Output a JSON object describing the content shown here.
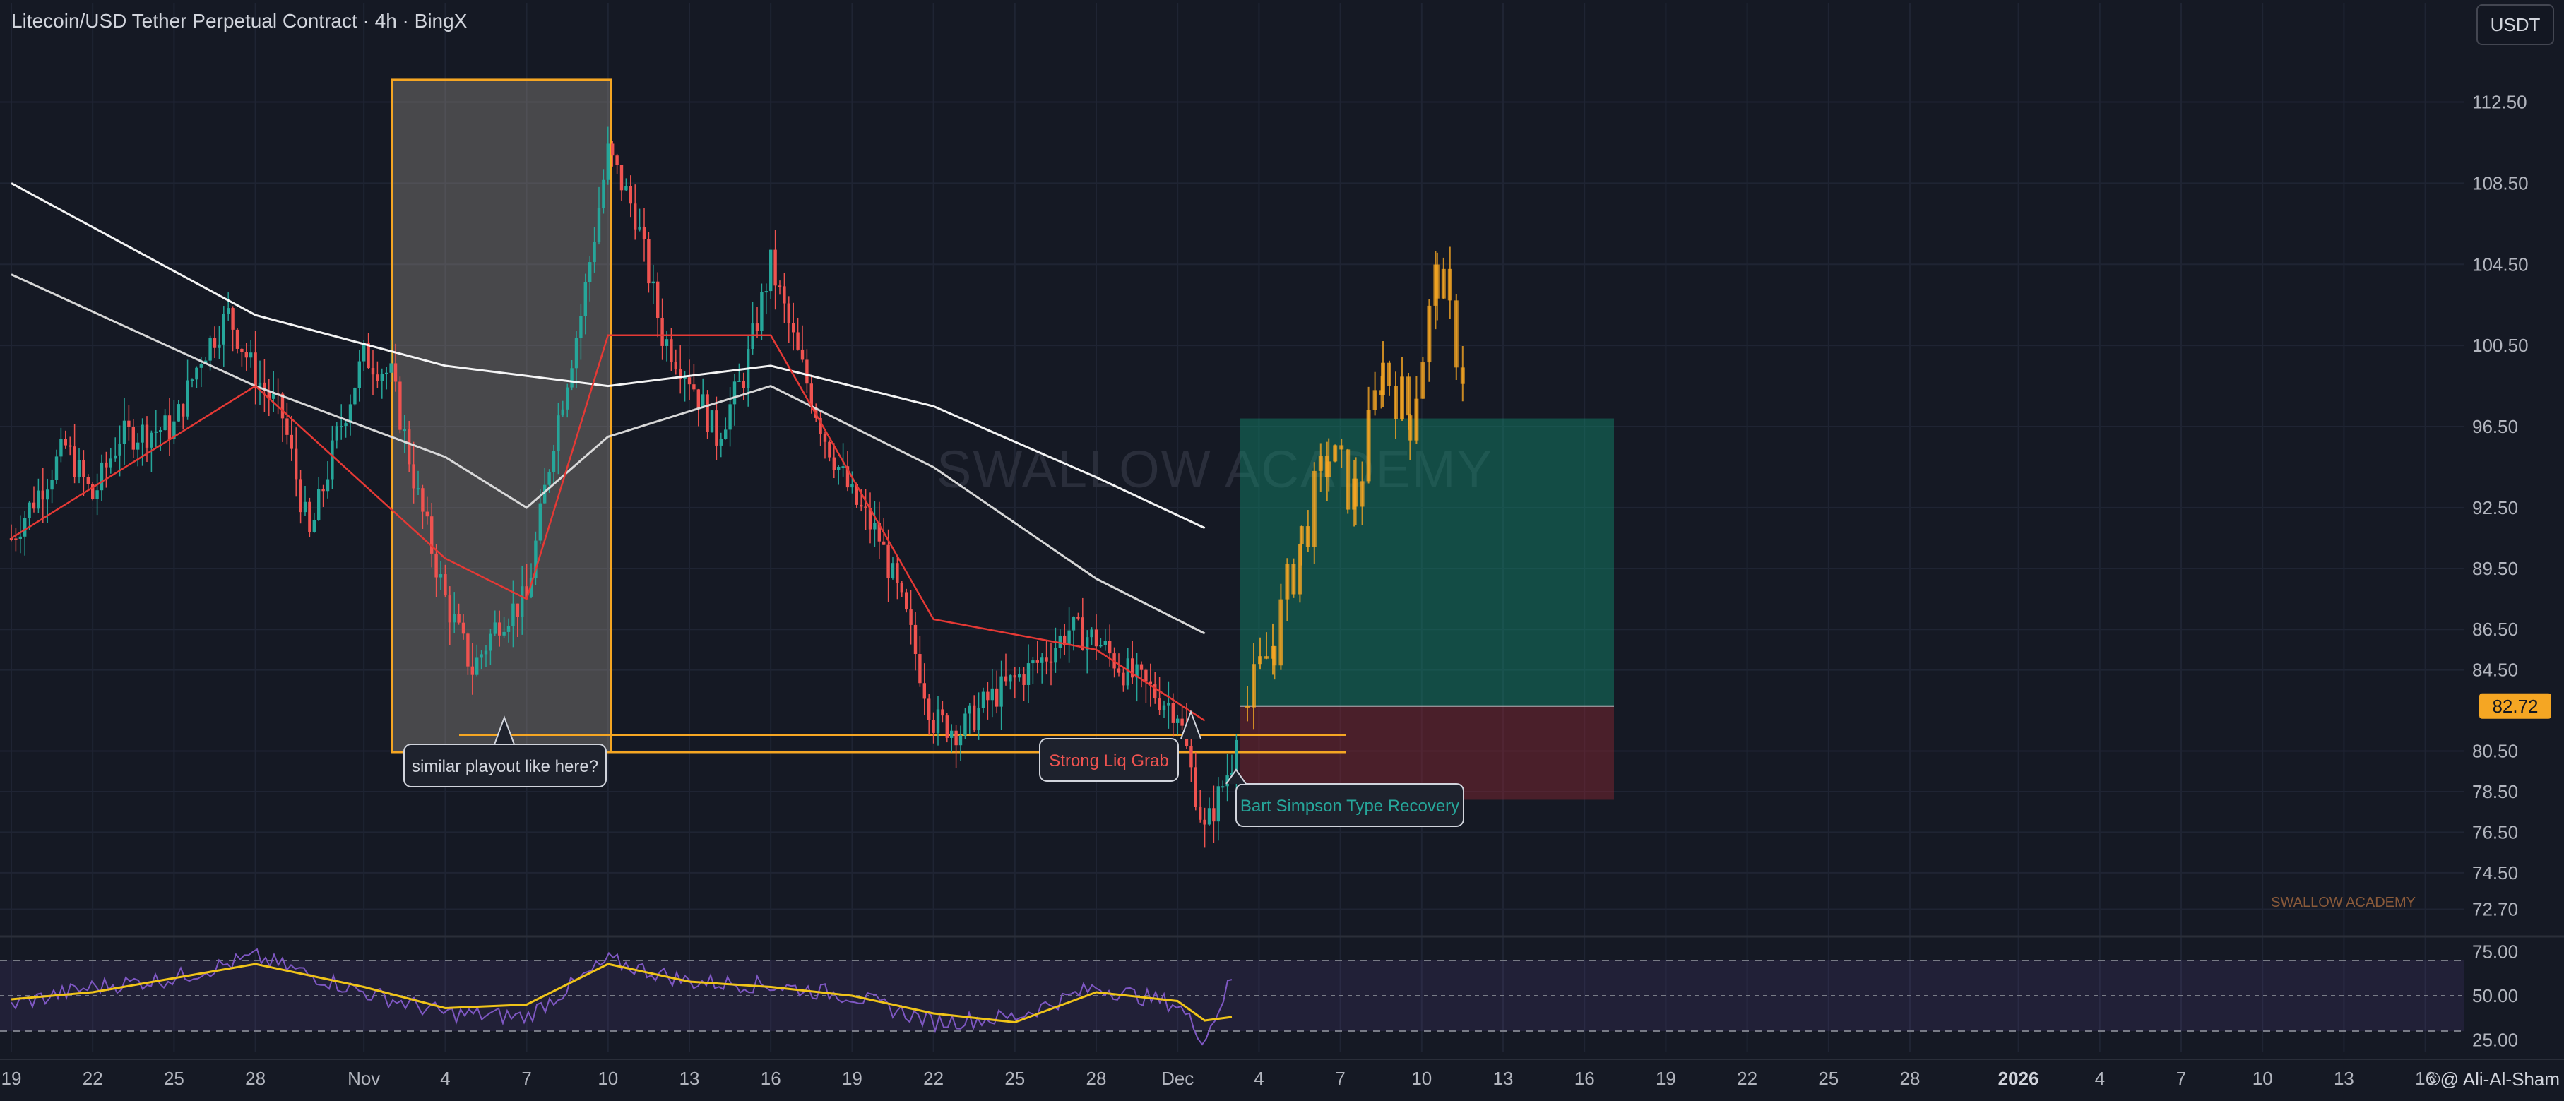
{
  "header": {
    "title": "Litecoin/USD Tether Perpetual Contract · 4h · BingX",
    "currency_button": "USDT"
  },
  "watermark": "SWALLOW ACADEMY",
  "footer_watermark": "SWALLOW ACADEMY",
  "author": "©@ Ali-Al-Sham",
  "colors": {
    "background": "#151924",
    "up": "#26a69a",
    "down": "#ef5350",
    "orange": "#f5a623",
    "rsi_line": "#7e57c2",
    "rsi_ma": "#f0c419",
    "ema_short_up": "#4caf50",
    "ema_short_down": "#e53935"
  },
  "annotations": {
    "similar_playout": "similar playout like here?",
    "strong_liq_grab": "Strong Liq Grab",
    "bart_simpson": "Bart Simpson Type Recovery"
  },
  "chart_data": [
    {
      "type": "candlestick",
      "title": "Litecoin/USD Tether Perpetual Contract · 4h · BingX",
      "y_unit": "USDT",
      "y_ticks": [
        "112.50",
        "108.50",
        "104.50",
        "100.50",
        "96.50",
        "92.50",
        "89.50",
        "86.50",
        "84.50",
        "80.50",
        "78.50",
        "76.50",
        "74.50",
        "72.70"
      ],
      "y_range": [
        71.5,
        116
      ],
      "current_price": "82.72",
      "x_ticks": [
        "19",
        "22",
        "25",
        "28",
        "Nov",
        "4",
        "7",
        "10",
        "13",
        "16",
        "19",
        "22",
        "25",
        "28",
        "Dec",
        "4",
        "7",
        "10",
        "13",
        "16",
        "19",
        "22",
        "25",
        "28",
        "2026",
        "4",
        "7",
        "10",
        "13",
        "16"
      ],
      "grid": true,
      "price_path": {
        "description_points": [
          [
            "Oct 19",
            91.0
          ],
          [
            "Oct 21",
            95.5
          ],
          [
            "Oct 22",
            93.0
          ],
          [
            "Oct 23",
            96.0
          ],
          [
            "Oct 25",
            96.5
          ],
          [
            "Oct 26",
            100.0
          ],
          [
            "Oct 27",
            102.0
          ],
          [
            "Oct 28",
            99.0
          ],
          [
            "Oct 29",
            97.0
          ],
          [
            "Oct 30",
            91.0
          ],
          [
            "Oct 31",
            96.0
          ],
          [
            "Nov 1",
            100.0
          ],
          [
            "Nov 2",
            99.0
          ],
          [
            "Nov 3",
            93.0
          ],
          [
            "Nov 4",
            88.0
          ],
          [
            "Nov 5",
            84.5
          ],
          [
            "Nov 6",
            87.0
          ],
          [
            "Nov 7",
            88.0
          ],
          [
            "Nov 8",
            96.0
          ],
          [
            "Nov 9",
            102.0
          ],
          [
            "Nov 10",
            110.0
          ],
          [
            "Nov 11",
            107.0
          ],
          [
            "Nov 12",
            101.0
          ],
          [
            "Nov 13",
            99.0
          ],
          [
            "Nov 14",
            96.0
          ],
          [
            "Nov 15",
            99.0
          ],
          [
            "Nov 16",
            104.5
          ],
          [
            "Nov 17",
            100.0
          ],
          [
            "Nov 18",
            96.0
          ],
          [
            "Nov 19",
            93.0
          ],
          [
            "Nov 20",
            91.0
          ],
          [
            "Nov 21",
            87.0
          ],
          [
            "Nov 22",
            82.0
          ],
          [
            "Nov 23",
            81.5
          ],
          [
            "Nov 24",
            83.0
          ],
          [
            "Nov 25",
            84.0
          ],
          [
            "Nov 26",
            85.0
          ],
          [
            "Nov 27",
            86.5
          ],
          [
            "Nov 28",
            86.0
          ],
          [
            "Nov 29",
            84.5
          ],
          [
            "Nov 30",
            83.5
          ],
          [
            "Dec 1",
            82.5
          ],
          [
            "Dec 2",
            76.5
          ],
          [
            "Dec 3",
            80.0
          ],
          [
            "Dec 3b",
            82.72
          ]
        ]
      },
      "moving_averages": [
        {
          "color": "#ffffff",
          "points": [
            [
              "Oct 19",
              108.5
            ],
            [
              "Oct 28",
              102.0
            ],
            [
              "Nov 4",
              99.5
            ],
            [
              "Nov 10",
              98.5
            ],
            [
              "Nov 16",
              99.5
            ],
            [
              "Nov 22",
              97.5
            ],
            [
              "Nov 28",
              94.0
            ],
            [
              "Dec 2",
              91.5
            ]
          ]
        },
        {
          "color": "#e0e0e0",
          "points": [
            [
              "Oct 19",
              104.0
            ],
            [
              "Oct 28",
              98.5
            ],
            [
              "Nov 4",
              95.0
            ],
            [
              "Nov 7",
              92.5
            ],
            [
              "Nov 10",
              96.0
            ],
            [
              "Nov 16",
              98.5
            ],
            [
              "Nov 22",
              94.5
            ],
            [
              "Nov 28",
              89.0
            ],
            [
              "Dec 2",
              86.3
            ]
          ]
        },
        {
          "color": "#4caf50/#e53935",
          "points": [
            [
              "Oct 19",
              91.0
            ],
            [
              "Oct 28",
              98.5
            ],
            [
              "Nov 4",
              90.0
            ],
            [
              "Nov 7",
              88.0
            ],
            [
              "Nov 10",
              101.0
            ],
            [
              "Nov 16",
              101.0
            ],
            [
              "Nov 22",
              87.0
            ],
            [
              "Nov 28",
              85.5
            ],
            [
              "Dec 2",
              82.0
            ]
          ]
        }
      ],
      "projection": {
        "color": "#f5a623",
        "path": [
          [
            "Dec 3",
            82.72
          ],
          [
            "Dec 4",
            86.0
          ],
          [
            "Dec 5",
            91.0
          ],
          [
            "Dec 6",
            95.0
          ],
          [
            "Dec 7",
            93.0
          ],
          [
            "Dec 8",
            99.5
          ],
          [
            "Dec 9",
            97.0
          ],
          [
            "Dec 10",
            104.0
          ],
          [
            "Dec 11",
            99.0
          ]
        ]
      },
      "position": {
        "entry": 82.72,
        "target": 96.9,
        "stop": 78.1,
        "start": "Dec 3",
        "end": "Dec 13"
      },
      "support_lines": [
        81.3,
        80.45
      ],
      "highlight_box": {
        "from": "Nov 1",
        "to": "Nov 10",
        "top": 113.6,
        "bottom": 80.45
      }
    },
    {
      "type": "line",
      "title": "RSI",
      "y_ticks": [
        "75.00",
        "50.00",
        "25.00"
      ],
      "y_range": [
        18,
        82
      ],
      "bands": [
        70,
        30
      ],
      "series": [
        {
          "color": "#7e57c2",
          "points": [
            [
              "Oct 19",
              45
            ],
            [
              "Oct 22",
              55
            ],
            [
              "Oct 25",
              60
            ],
            [
              "Oct 28",
              72
            ],
            [
              "Nov 1",
              52
            ],
            [
              "Nov 4",
              40
            ],
            [
              "Nov 7",
              38
            ],
            [
              "Nov 10",
              70
            ],
            [
              "Nov 13",
              58
            ],
            [
              "Nov 16",
              56
            ],
            [
              "Nov 19",
              50
            ],
            [
              "Nov 22",
              35
            ],
            [
              "Nov 25",
              38
            ],
            [
              "Nov 28",
              55
            ],
            [
              "Dec 1",
              45
            ],
            [
              "Dec 2",
              25
            ],
            [
              "Dec 3",
              60
            ]
          ]
        },
        {
          "color": "#f0c419",
          "points": [
            [
              "Oct 19",
              48
            ],
            [
              "Oct 22",
              52
            ],
            [
              "Oct 25",
              60
            ],
            [
              "Oct 28",
              68
            ],
            [
              "Nov 1",
              55
            ],
            [
              "Nov 4",
              43
            ],
            [
              "Nov 7",
              45
            ],
            [
              "Nov 10",
              68
            ],
            [
              "Nov 13",
              58
            ],
            [
              "Nov 16",
              55
            ],
            [
              "Nov 19",
              50
            ],
            [
              "Nov 22",
              40
            ],
            [
              "Nov 25",
              35
            ],
            [
              "Nov 28",
              52
            ],
            [
              "Dec 1",
              47
            ],
            [
              "Dec 2",
              36
            ],
            [
              "Dec 3",
              38
            ]
          ]
        }
      ]
    }
  ]
}
